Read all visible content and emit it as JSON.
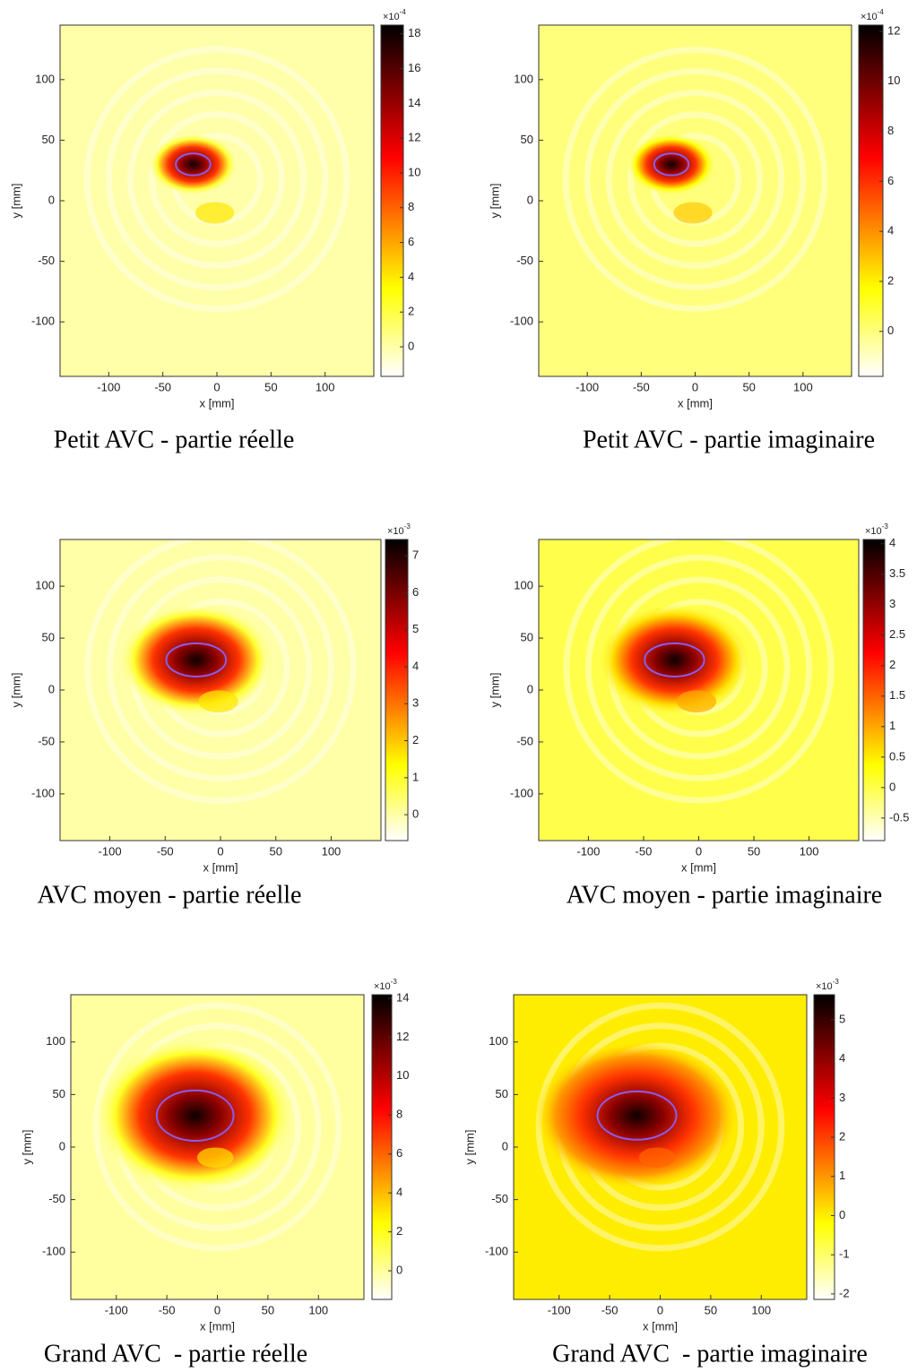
{
  "chart_data": [
    {
      "type": "heatmap",
      "caption": "Petit AVC - partie réelle",
      "xlabel": "x [mm]",
      "ylabel": "y [mm]",
      "xlim": [
        -145,
        145
      ],
      "ylim": [
        -145,
        145
      ],
      "xticks": [
        -100,
        -50,
        0,
        50,
        100
      ],
      "yticks": [
        -100,
        -50,
        0,
        50,
        100
      ],
      "ellipse": {
        "cx": -22,
        "cy": 30,
        "rx": 16,
        "ry": 9,
        "color": "#8a5cf0"
      },
      "colorbar": {
        "scale": "×10",
        "exponent": "-4",
        "lim": [
          -1.7,
          18.5
        ],
        "ticks": [
          0,
          2,
          4,
          6,
          8,
          10,
          12,
          14,
          16,
          18
        ]
      }
    },
    {
      "type": "heatmap",
      "caption": "Petit AVC - partie imaginaire",
      "xlabel": "x [mm]",
      "ylabel": "y [mm]",
      "xlim": [
        -145,
        145
      ],
      "ylim": [
        -145,
        145
      ],
      "xticks": [
        -100,
        -50,
        0,
        50,
        100
      ],
      "yticks": [
        -100,
        -50,
        0,
        50,
        100
      ],
      "ellipse": {
        "cx": -22,
        "cy": 30,
        "rx": 16,
        "ry": 9,
        "color": "#8a5cf0"
      },
      "colorbar": {
        "scale": "×10",
        "exponent": "-4",
        "lim": [
          -1.8,
          12.25
        ],
        "ticks": [
          0,
          2,
          4,
          6,
          8,
          10,
          12
        ]
      }
    },
    {
      "type": "heatmap",
      "caption": "AVC moyen - partie réelle",
      "xlabel": "x [mm]",
      "ylabel": "y [mm]",
      "xlim": [
        -145,
        145
      ],
      "ylim": [
        -145,
        145
      ],
      "xticks": [
        -100,
        -50,
        0,
        50,
        100
      ],
      "yticks": [
        -100,
        -50,
        0,
        50,
        100
      ],
      "ellipse": {
        "cx": -22,
        "cy": 29,
        "rx": 27,
        "ry": 16,
        "color": "#8a5cf0"
      },
      "colorbar": {
        "scale": "×10",
        "exponent": "-3",
        "lim": [
          -0.7,
          7.44
        ],
        "ticks": [
          0,
          1,
          2,
          3,
          4,
          5,
          6,
          7
        ]
      }
    },
    {
      "type": "heatmap",
      "caption": "AVC moyen - partie imaginaire",
      "xlabel": "x [mm]",
      "ylabel": "y [mm]",
      "xlim": [
        -145,
        145
      ],
      "ylim": [
        -145,
        145
      ],
      "xticks": [
        -100,
        -50,
        0,
        50,
        100
      ],
      "yticks": [
        -100,
        -50,
        0,
        50,
        100
      ],
      "ellipse": {
        "cx": -22,
        "cy": 29,
        "rx": 27,
        "ry": 16,
        "color": "#8a5cf0"
      },
      "colorbar": {
        "scale": "×10",
        "exponent": "-3",
        "lim": [
          -0.87,
          4.07
        ],
        "ticks": [
          -0.5,
          0,
          0.5,
          1,
          1.5,
          2,
          2.5,
          3,
          3.5,
          4
        ]
      }
    },
    {
      "type": "heatmap",
      "caption": "Grand AVC  - partie réelle",
      "xlabel": "x [mm]",
      "ylabel": "y [mm]",
      "xlim": [
        -145,
        145
      ],
      "ylim": [
        -145,
        145
      ],
      "xticks": [
        -100,
        -50,
        0,
        50,
        100
      ],
      "yticks": [
        -100,
        -50,
        0,
        50,
        100
      ],
      "ellipse": {
        "cx": -22,
        "cy": 30,
        "rx": 38,
        "ry": 24,
        "color": "#8a5cf0"
      },
      "colorbar": {
        "scale": "×10",
        "exponent": "-3",
        "lim": [
          -1.47,
          14.18
        ],
        "ticks": [
          0,
          2,
          4,
          6,
          8,
          10,
          12,
          14
        ]
      }
    },
    {
      "type": "heatmap",
      "caption": "Grand AVC  - partie imaginaire",
      "xlabel": "x [mm]",
      "ylabel": "y [mm]",
      "xlim": [
        -145,
        145
      ],
      "ylim": [
        -145,
        145
      ],
      "xticks": [
        -100,
        -50,
        0,
        50,
        100
      ],
      "yticks": [
        -100,
        -50,
        0,
        50,
        100
      ],
      "ellipse": {
        "cx": -23,
        "cy": 30,
        "rx": 39,
        "ry": 23,
        "color": "#8a5cf0"
      },
      "colorbar": {
        "scale": "×10",
        "exponent": "-3",
        "lim": [
          -2.14,
          5.64
        ],
        "ticks": [
          -2,
          -1,
          0,
          1,
          2,
          3,
          4,
          5
        ]
      }
    }
  ]
}
